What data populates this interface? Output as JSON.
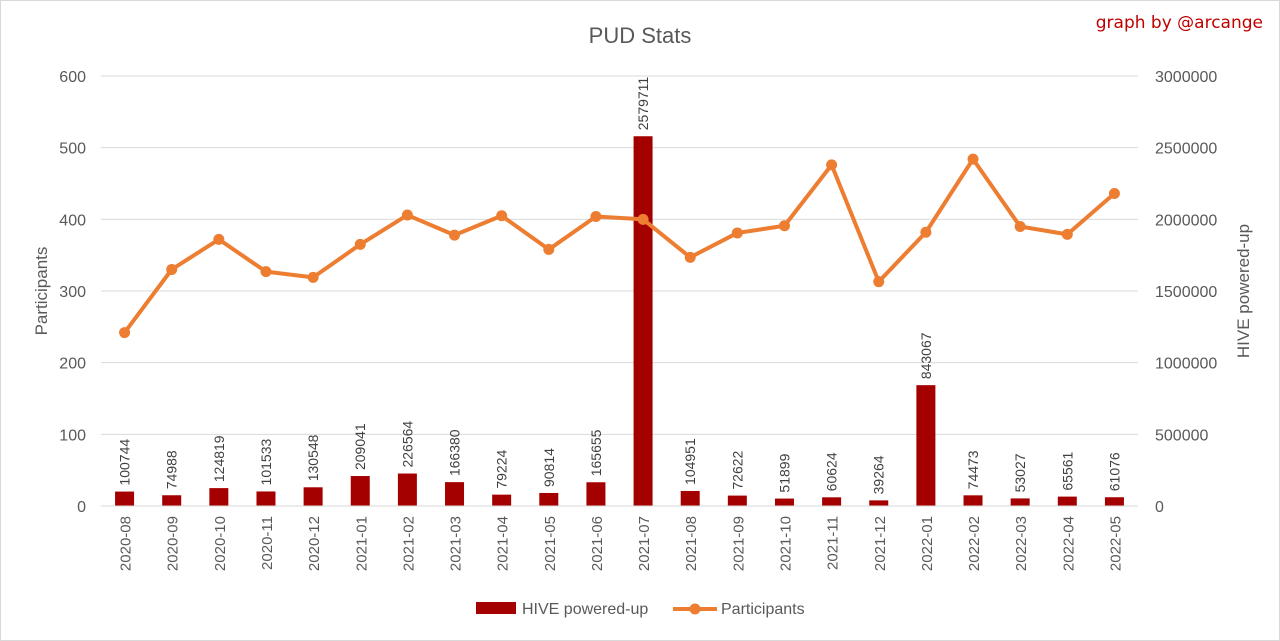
{
  "credit": "graph by @arcange",
  "chart_data": {
    "type": "bar",
    "combo": "bar+line",
    "title": "PUD Stats",
    "categories": [
      "2020-08",
      "2020-09",
      "2020-10",
      "2020-11",
      "2020-12",
      "2021-01",
      "2021-02",
      "2021-03",
      "2021-04",
      "2021-05",
      "2021-06",
      "2021-07",
      "2021-08",
      "2021-09",
      "2021-10",
      "2021-11",
      "2021-12",
      "2022-01",
      "2022-02",
      "2022-03",
      "2022-04",
      "2022-05"
    ],
    "ylabel_left": "Participants",
    "ylabel_right": "HIVE powered-up",
    "ylim_left": [
      0,
      600
    ],
    "yticks_left": [
      "0",
      "100",
      "200",
      "300",
      "400",
      "500",
      "600"
    ],
    "ylim_right": [
      0,
      3000000
    ],
    "yticks_right": [
      "0",
      "500000",
      "1000000",
      "1500000",
      "2000000",
      "2500000",
      "3000000"
    ],
    "grid": true,
    "legend_position": "bottom",
    "series": [
      {
        "name": "HIVE powered-up",
        "type": "bar",
        "axis": "right",
        "color": "#a50000",
        "values": [
          100744,
          74988,
          124819,
          101533,
          130548,
          209041,
          226564,
          166380,
          79224,
          90814,
          165655,
          2579711,
          104951,
          72622,
          51899,
          60624,
          39264,
          843067,
          74473,
          53027,
          65561,
          61076
        ],
        "labels": [
          "100744",
          "74988",
          "124819",
          "101533",
          "130548",
          "209041",
          "226564",
          "166380",
          "79224",
          "90814",
          "165655",
          "2579711",
          "104951",
          "72622",
          "51899",
          "60624",
          "39264",
          "843067",
          "74473",
          "53027",
          "65561",
          "61076"
        ]
      },
      {
        "name": "Participants",
        "type": "line",
        "axis": "left",
        "color": "#ed7d31",
        "values": [
          242,
          330,
          372,
          327,
          319,
          365,
          406,
          378,
          405,
          358,
          404,
          400,
          347,
          381,
          391,
          476,
          313,
          382,
          484,
          390,
          379,
          436
        ]
      }
    ]
  }
}
